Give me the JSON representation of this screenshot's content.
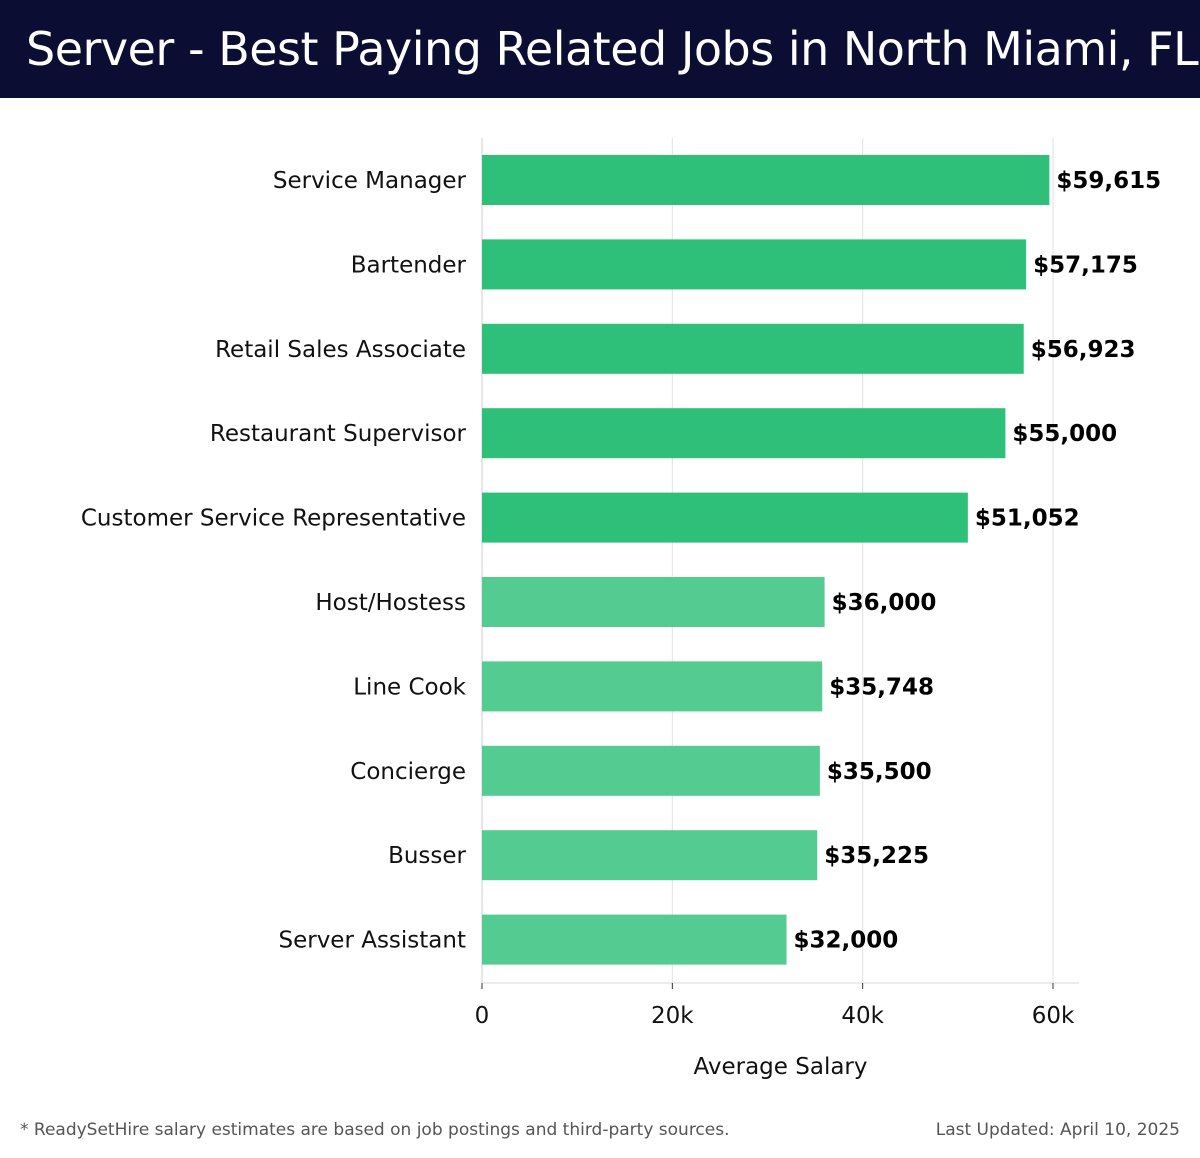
{
  "header": {
    "title": "Server - Best Paying Related Jobs in North Miami, FL"
  },
  "chart_data": {
    "type": "bar",
    "orientation": "horizontal",
    "title": "Server - Best Paying Related Jobs in North Miami, FL",
    "xlabel": "Average Salary",
    "ylabel": "",
    "xlim": [
      0,
      60000
    ],
    "xticks": [
      0,
      20000,
      40000,
      60000
    ],
    "xtick_labels": [
      "0",
      "20k",
      "40k",
      "60k"
    ],
    "grid": true,
    "categories": [
      "Service Manager",
      "Bartender",
      "Retail Sales Associate",
      "Restaurant Supervisor",
      "Customer Service Representative",
      "Host/Hostess",
      "Line Cook",
      "Concierge",
      "Busser",
      "Server Assistant"
    ],
    "values": [
      59615,
      57175,
      56923,
      55000,
      51052,
      36000,
      35748,
      35500,
      35225,
      32000
    ],
    "value_labels": [
      "$59,615",
      "$57,175",
      "$56,923",
      "$55,000",
      "$51,052",
      "$36,000",
      "$35,748",
      "$35,500",
      "$35,225",
      "$32,000"
    ],
    "highlight_count": 5,
    "colors": {
      "highlight": "#2ebf78",
      "normal": "#54cb91",
      "grid": "#e2e2e2",
      "text": "#111111"
    }
  },
  "footer": {
    "note": "* ReadySetHire salary estimates are based on job postings and third-party sources.",
    "updated": "Last Updated: April 10, 2025"
  }
}
